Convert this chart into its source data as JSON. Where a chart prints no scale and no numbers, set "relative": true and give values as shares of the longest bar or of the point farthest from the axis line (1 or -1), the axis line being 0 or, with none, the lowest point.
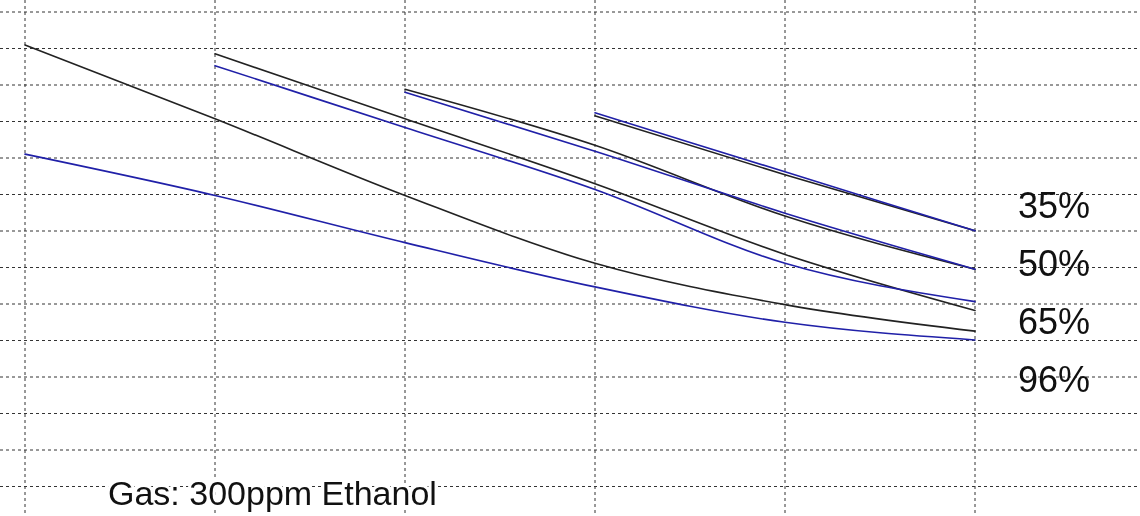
{
  "chart_data": {
    "type": "line",
    "relative": true,
    "categories": [
      null,
      null,
      null,
      null,
      null,
      null
    ],
    "grid": true,
    "line_style": "solid",
    "series": [
      {
        "color": "#222222",
        "values": [
          1.0,
          0.75,
          0.49,
          0.26,
          0.12,
          0.03
        ]
      },
      {
        "color": "#2020a8",
        "values": [
          0.63,
          0.49,
          0.33,
          0.18,
          0.06,
          0.0
        ]
      },
      {
        "color": "#222222",
        "values": [
          null,
          0.97,
          0.75,
          0.53,
          0.29,
          0.1
        ]
      },
      {
        "color": "#2020a8",
        "values": [
          null,
          0.93,
          0.72,
          0.51,
          0.26,
          0.13
        ]
      },
      {
        "color": "#222222",
        "values": [
          null,
          null,
          0.85,
          0.66,
          0.42,
          0.24
        ]
      },
      {
        "color": "#2020a8",
        "values": [
          null,
          null,
          0.84,
          0.64,
          0.43,
          0.24
        ]
      },
      {
        "color": "#222222",
        "values": [
          null,
          null,
          null,
          0.76,
          0.56,
          0.37
        ]
      },
      {
        "color": "#2020a8",
        "values": [
          null,
          null,
          null,
          0.77,
          0.57,
          0.37
        ]
      }
    ],
    "annotations": [
      "35%",
      "50%",
      "65%",
      "96%",
      "Gas: 300ppm Ethanol"
    ]
  }
}
